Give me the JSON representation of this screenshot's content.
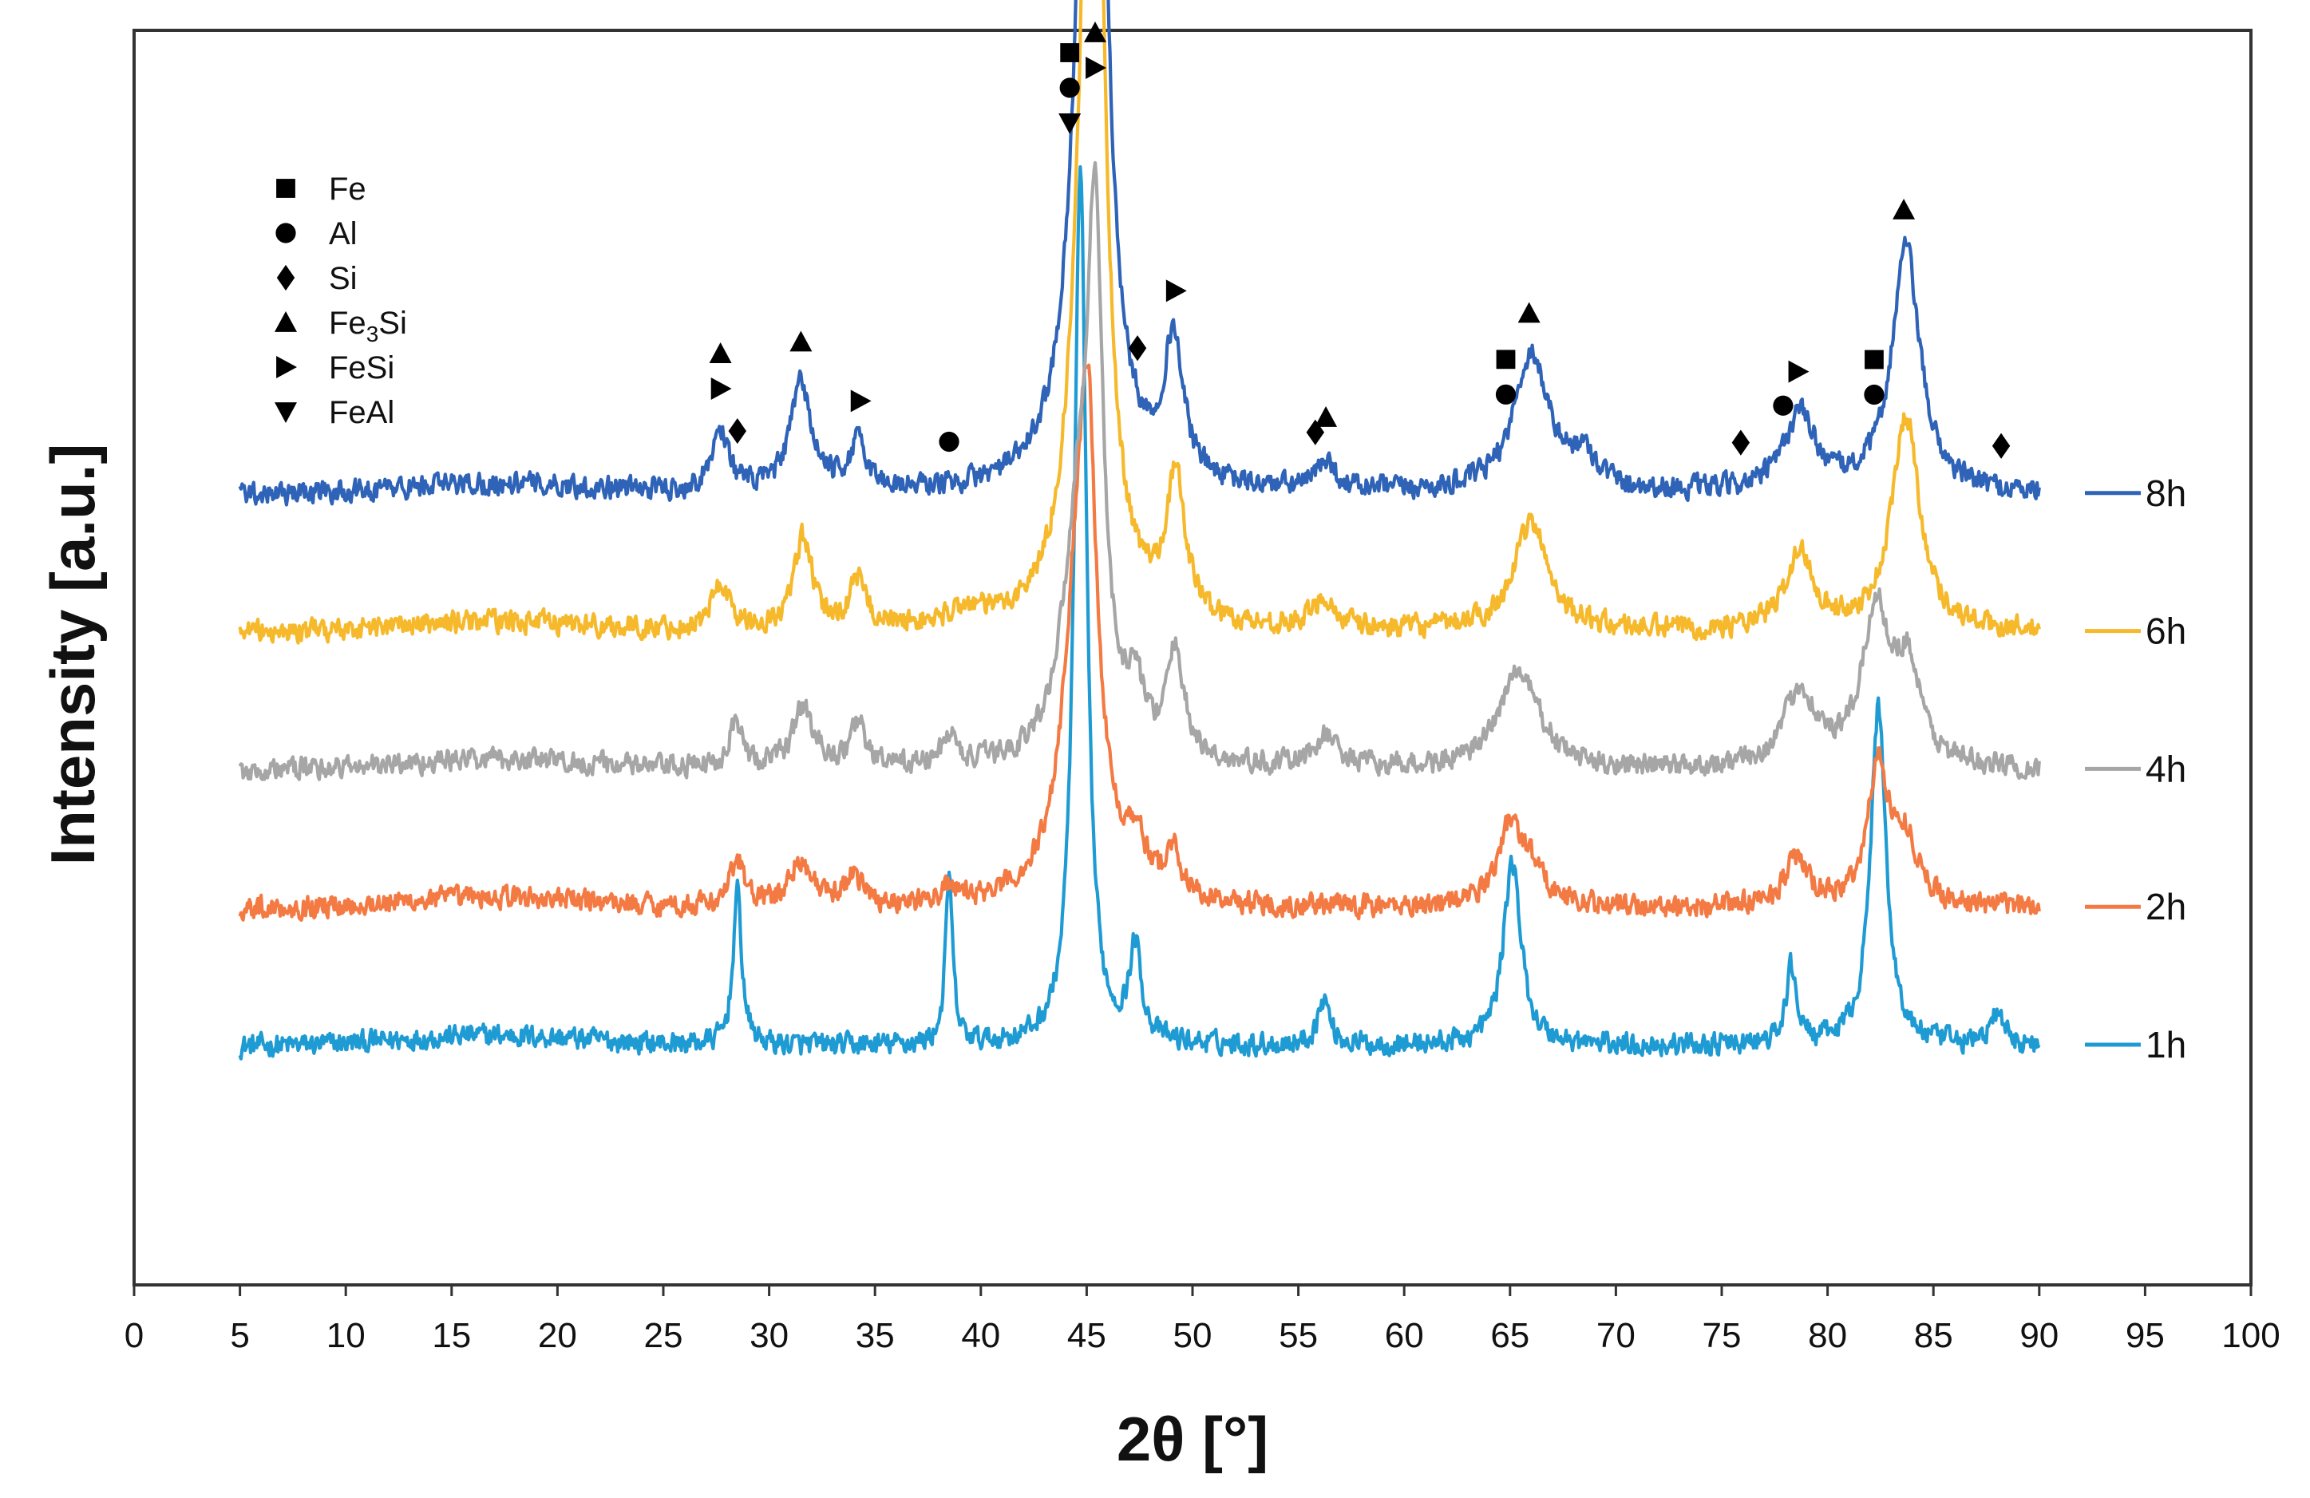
{
  "chart_data": {
    "type": "line",
    "title": "",
    "xlabel": "2θ [°]",
    "ylabel": "Intensity  [a.u.]",
    "xlim": [
      0,
      100
    ],
    "xticks": [
      "0",
      "5",
      "10",
      "15",
      "20",
      "25",
      "30",
      "35",
      "40",
      "45",
      "50",
      "55",
      "60",
      "65",
      "70",
      "75",
      "80",
      "85",
      "90",
      "95",
      "100"
    ],
    "y_units": "arbitrary (stacked, offset patterns)",
    "grid": false,
    "phase_legend": {
      "placement": "top-left",
      "entries": [
        {
          "symbol": "square",
          "label": "Fe"
        },
        {
          "symbol": "circle",
          "label": "Al"
        },
        {
          "symbol": "diamond",
          "label": "Si"
        },
        {
          "symbol": "triangle-up",
          "label_main": "Fe",
          "label_sub": "3",
          "label_tail": "Si"
        },
        {
          "symbol": "triangle-right",
          "label": "FeSi"
        },
        {
          "symbol": "triangle-down",
          "label": "FeAl"
        }
      ]
    },
    "series": [
      {
        "name": "8h",
        "color": "#2e63b8",
        "baseline": 56,
        "peaks": [
          [
            27.7,
            4,
            0.5
          ],
          [
            31.5,
            7,
            0.6
          ],
          [
            34.2,
            3,
            0.5
          ],
          [
            44.8,
            8,
            1.0
          ],
          [
            45.3,
            78,
            0.55
          ],
          [
            49.1,
            9,
            0.55
          ],
          [
            56.3,
            2,
            0.5
          ],
          [
            66.0,
            9,
            1.0
          ],
          [
            68.5,
            2,
            0.8
          ],
          [
            78.7,
            5,
            0.9
          ],
          [
            83.7,
            16,
            0.8
          ]
        ]
      },
      {
        "name": "6h",
        "color": "#f6b92c",
        "baseline": 47,
        "peaks": [
          [
            27.7,
            3,
            0.5
          ],
          [
            31.6,
            6,
            0.5
          ],
          [
            34.2,
            3,
            0.5
          ],
          [
            39.3,
            1,
            1.0
          ],
          [
            44.9,
            10,
            1.0
          ],
          [
            45.3,
            64,
            0.55
          ],
          [
            49.2,
            9,
            0.55
          ],
          [
            56.2,
            2,
            0.6
          ],
          [
            66.0,
            7,
            1.0
          ],
          [
            78.7,
            5,
            0.8
          ],
          [
            83.7,
            14,
            0.8
          ]
        ]
      },
      {
        "name": "4h",
        "color": "#a6a6a6",
        "baseline": 38,
        "peaks": [
          [
            28.4,
            3,
            0.4
          ],
          [
            31.6,
            4,
            0.6
          ],
          [
            34.2,
            3,
            0.4
          ],
          [
            38.5,
            2,
            0.4
          ],
          [
            44.6,
            14,
            0.9
          ],
          [
            45.4,
            31,
            0.45
          ],
          [
            47.3,
            4,
            0.5
          ],
          [
            49.2,
            7,
            0.5
          ],
          [
            56.3,
            2,
            0.7
          ],
          [
            65.2,
            5,
            1.0
          ],
          [
            66.0,
            2,
            1.0
          ],
          [
            78.7,
            5,
            0.9
          ],
          [
            82.3,
            10,
            0.8
          ],
          [
            83.8,
            6,
            0.7
          ]
        ]
      },
      {
        "name": "2h",
        "color": "#f47a44",
        "baseline": 29,
        "peaks": [
          [
            28.5,
            3,
            0.4
          ],
          [
            31.5,
            3,
            0.6
          ],
          [
            34.0,
            2,
            0.5
          ],
          [
            38.5,
            1,
            0.4
          ],
          [
            44.7,
            23,
            0.9
          ],
          [
            45.1,
            16,
            0.4
          ],
          [
            47.3,
            3,
            0.6
          ],
          [
            49.1,
            3,
            0.4
          ],
          [
            65.0,
            5,
            0.7
          ],
          [
            66.0,
            2,
            0.8
          ],
          [
            78.5,
            3,
            0.7
          ],
          [
            82.4,
            9,
            0.6
          ],
          [
            83.7,
            4,
            0.7
          ]
        ]
      },
      {
        "name": "1h",
        "color": "#1f9bd4",
        "baseline": 20,
        "peaks": [
          [
            28.5,
            10,
            0.25
          ],
          [
            38.5,
            11,
            0.2
          ],
          [
            44.7,
            57,
            0.35
          ],
          [
            47.3,
            6,
            0.35
          ],
          [
            56.2,
            3,
            0.35
          ],
          [
            65.1,
            12,
            0.5
          ],
          [
            78.3,
            5,
            0.3
          ],
          [
            82.4,
            22,
            0.45
          ],
          [
            88.0,
            2,
            0.4
          ]
        ]
      }
    ],
    "series_label_placement": "right",
    "phase_markers": [
      {
        "x": 27.7,
        "symbols": [
          "triangle-up",
          "triangle-right"
        ]
      },
      {
        "x": 28.5,
        "symbols": [
          "diamond"
        ]
      },
      {
        "x": 31.5,
        "symbols": [
          "triangle-up"
        ]
      },
      {
        "x": 34.3,
        "symbols": [
          "triangle-right"
        ]
      },
      {
        "x": 38.5,
        "symbols": [
          "circle"
        ]
      },
      {
        "x": 44.2,
        "symbols": [
          "square",
          "circle",
          "triangle-down"
        ]
      },
      {
        "x": 45.4,
        "symbols": [
          "triangle-up",
          "triangle-right"
        ]
      },
      {
        "x": 47.4,
        "symbols": [
          "diamond"
        ]
      },
      {
        "x": 49.2,
        "symbols": [
          "triangle-right"
        ]
      },
      {
        "x": 55.8,
        "symbols": [
          "diamond"
        ]
      },
      {
        "x": 56.3,
        "symbols": [
          "triangle-up"
        ]
      },
      {
        "x": 64.8,
        "symbols": [
          "square",
          "circle"
        ]
      },
      {
        "x": 65.9,
        "symbols": [
          "triangle-up"
        ]
      },
      {
        "x": 75.9,
        "symbols": [
          "diamond"
        ]
      },
      {
        "x": 77.9,
        "symbols": [
          "circle"
        ]
      },
      {
        "x": 78.6,
        "symbols": [
          "triangle-right"
        ]
      },
      {
        "x": 82.2,
        "symbols": [
          "square",
          "circle"
        ]
      },
      {
        "x": 83.6,
        "symbols": [
          "triangle-up"
        ]
      },
      {
        "x": 88.2,
        "symbols": [
          "diamond"
        ]
      }
    ]
  }
}
